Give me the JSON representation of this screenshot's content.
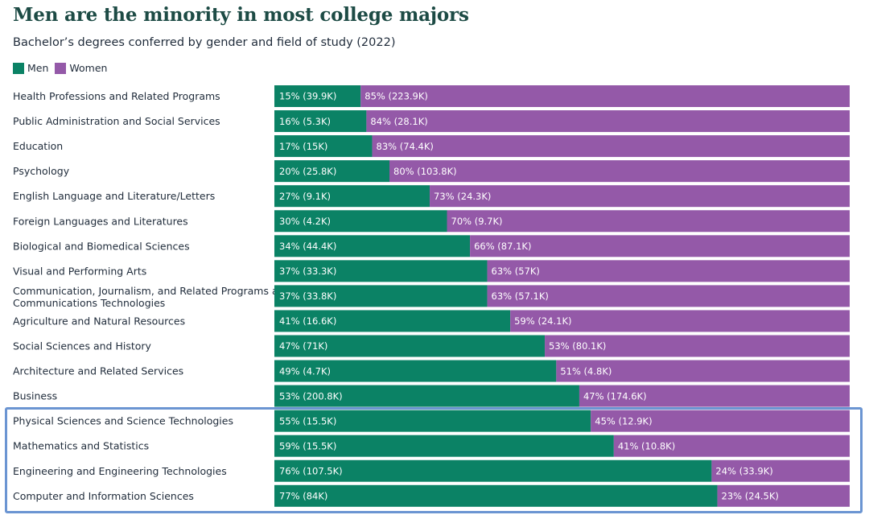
{
  "header": {
    "title": "Men are the minority in most college majors",
    "subtitle": "Bachelor’s degrees conferred by gender and field of study (2022)"
  },
  "legend": {
    "men_label": "Men",
    "women_label": "Women"
  },
  "colors": {
    "men": "#0b8265",
    "women": "#9459a8",
    "highlight": "#6b95d2"
  },
  "chart_data": {
    "type": "bar",
    "orientation": "horizontal",
    "stacked": "percent",
    "title": "Men are the minority in most college majors",
    "subtitle": "Bachelor’s degrees conferred by gender and field of study (2022)",
    "legend_position": "top-left",
    "categories": [
      [
        "Health Professions and Related Programs"
      ],
      [
        "Public Administration and Social Services"
      ],
      [
        "Education"
      ],
      [
        "Psychology"
      ],
      [
        "English Language and Literature/Letters"
      ],
      [
        "Foreign Languages and Literatures"
      ],
      [
        "Biological and Biomedical Sciences"
      ],
      [
        "Visual and Performing Arts"
      ],
      [
        "Communication, Journalism, and Related Programs and In",
        "Communications Technologies"
      ],
      [
        "Agriculture and Natural Resources"
      ],
      [
        "Social Sciences and History"
      ],
      [
        "Architecture and Related Services"
      ],
      [
        "Business"
      ],
      [
        "Physical Sciences and Science Technologies"
      ],
      [
        "Mathematics and Statistics"
      ],
      [
        "Engineering and Engineering Technologies"
      ],
      [
        "Computer and Information Sciences"
      ]
    ],
    "series": [
      {
        "name": "Men",
        "percent": [
          15,
          16,
          17,
          20,
          27,
          30,
          34,
          37,
          37,
          41,
          47,
          49,
          53,
          55,
          59,
          76,
          77
        ],
        "labels": [
          "15% (39.9K)",
          "16% (5.3K)",
          "17% (15K)",
          "20% (25.8K)",
          "27% (9.1K)",
          "30% (4.2K)",
          "34% (44.4K)",
          "37% (33.3K)",
          "37% (33.8K)",
          "41% (16.6K)",
          "47% (71K)",
          "49% (4.7K)",
          "53% (200.8K)",
          "55% (15.5K)",
          "59% (15.5K)",
          "76% (107.5K)",
          "77% (84K)"
        ]
      },
      {
        "name": "Women",
        "percent": [
          85,
          84,
          83,
          80,
          73,
          70,
          66,
          63,
          63,
          59,
          53,
          51,
          47,
          45,
          41,
          24,
          23
        ],
        "labels": [
          "85% (223.9K)",
          "84% (28.1K)",
          "83% (74.4K)",
          "80% (103.8K)",
          "73% (24.3K)",
          "70% (9.7K)",
          "66% (87.1K)",
          "63% (57K)",
          "63% (57.1K)",
          "59% (24.1K)",
          "53% (80.1K)",
          "51% (4.8K)",
          "47% (174.6K)",
          "45% (12.9K)",
          "41% (10.8K)",
          "24% (33.9K)",
          "23% (24.5K)"
        ]
      }
    ],
    "highlighted_categories": [
      13,
      14,
      15,
      16
    ]
  }
}
